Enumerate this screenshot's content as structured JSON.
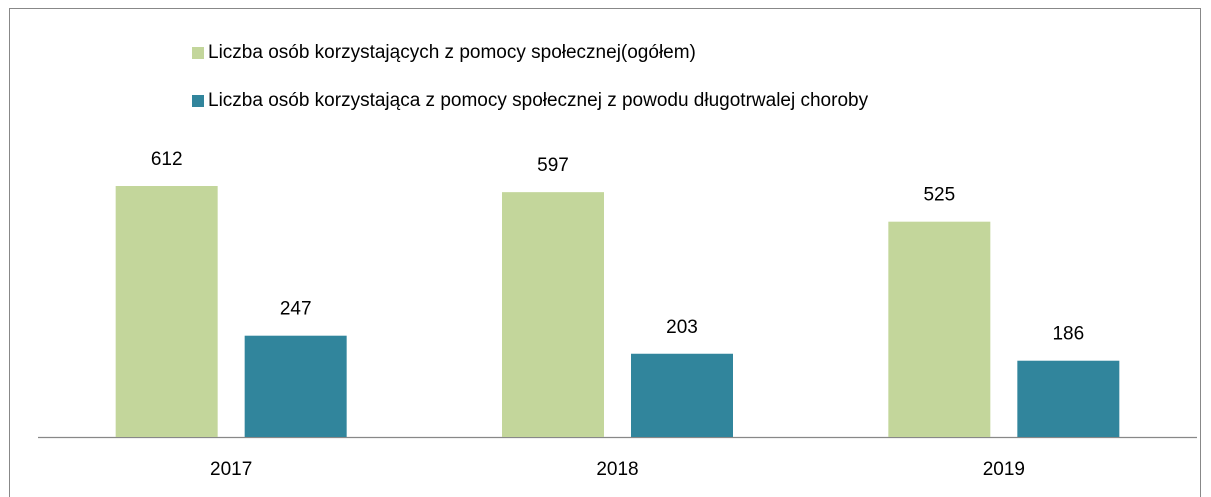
{
  "chart_data": {
    "type": "bar",
    "categories": [
      "2017",
      "2018",
      "2019"
    ],
    "series": [
      {
        "name": "Liczba osób korzystających z pomocy społecznej(ogółem)",
        "color": "#c3d69b",
        "values": [
          612,
          597,
          525
        ]
      },
      {
        "name": "Liczba osób korzystająca z pomocy społecznej z powodu długotrwalej choroby",
        "color": "#31859c",
        "values": [
          247,
          203,
          186
        ]
      }
    ]
  }
}
